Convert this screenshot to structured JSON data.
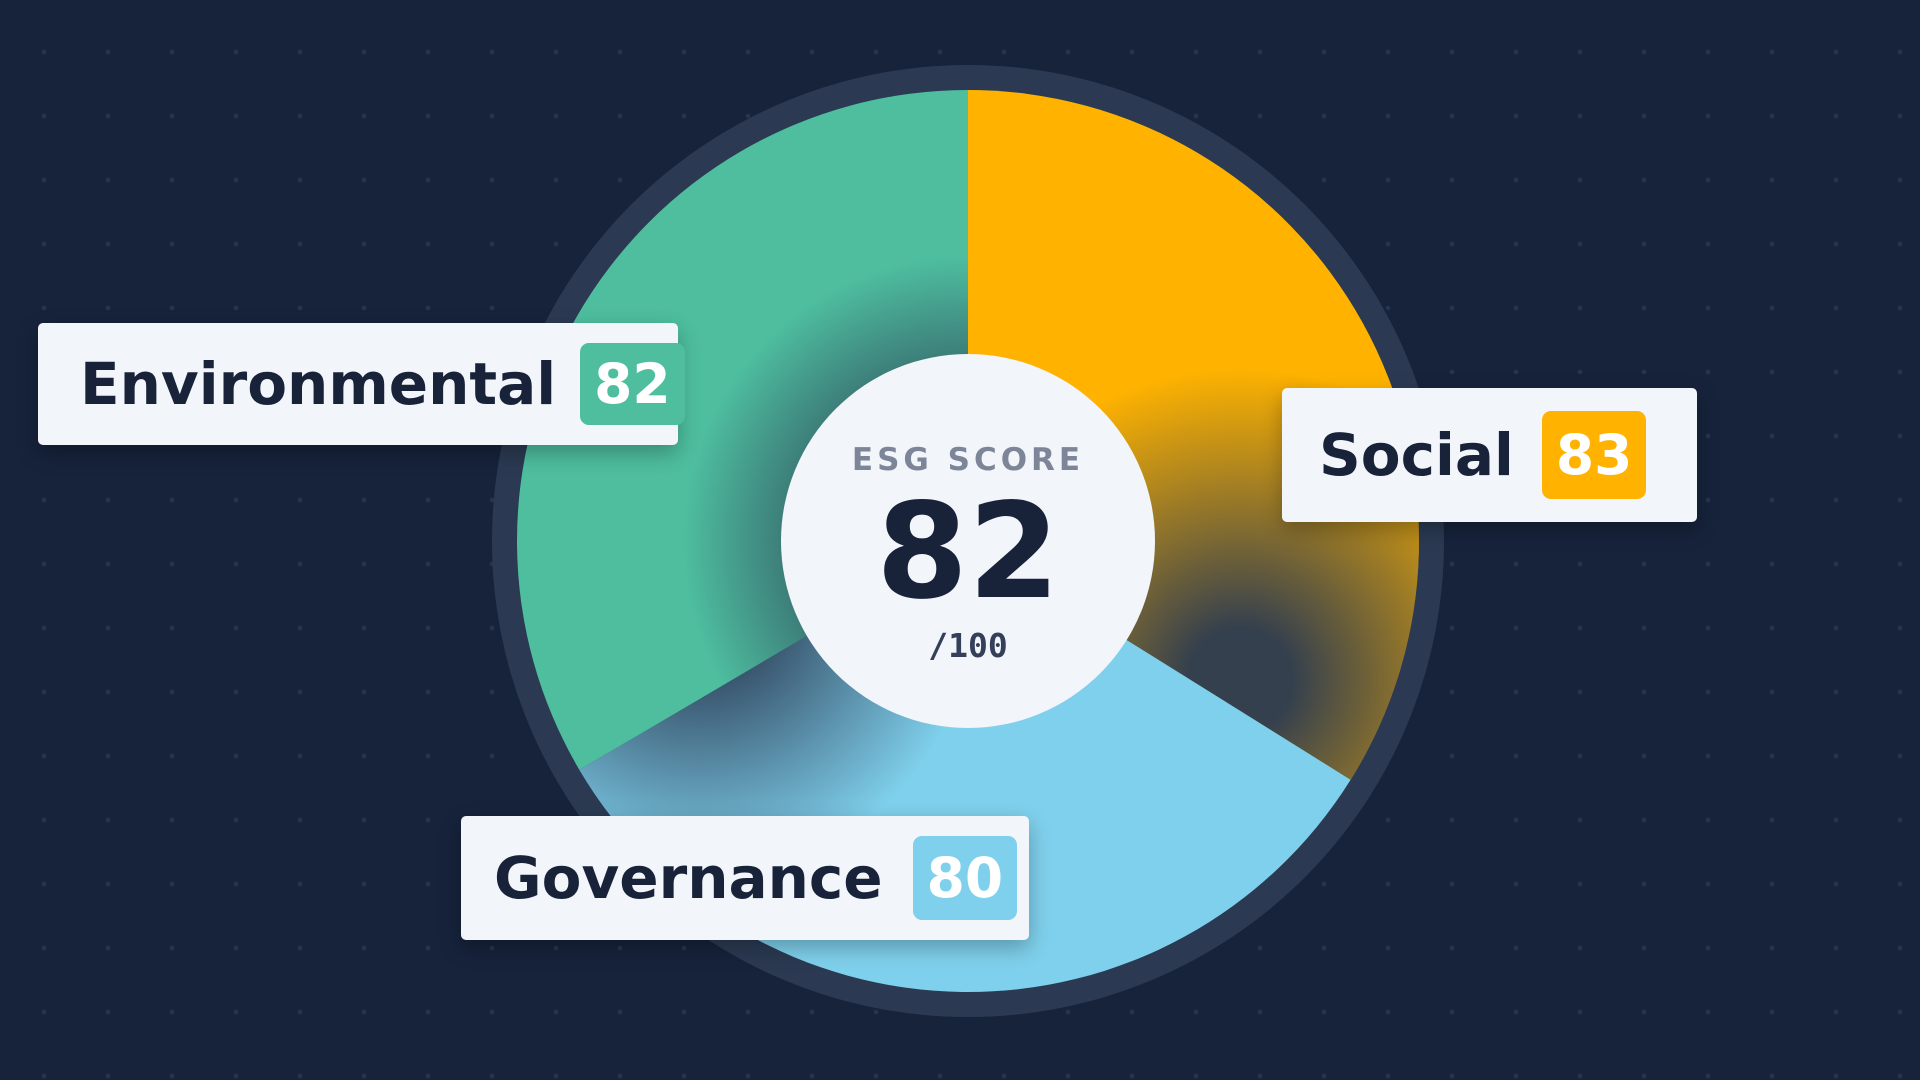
{
  "colors": {
    "background": "#16233b",
    "environmental": "#4ebe9f",
    "social": "#ffb300",
    "governance": "#7fd0ec",
    "track": "#2a3a52",
    "center_fill": "#f2f5fa",
    "text_dark": "#18233a"
  },
  "center": {
    "title": "ESG SCORE",
    "value": "82",
    "sub": "/100"
  },
  "chart_data": {
    "type": "pie",
    "categories": [
      "Social",
      "Governance",
      "Environmental"
    ],
    "values": [
      83,
      80,
      82
    ],
    "center_value": 82,
    "max": 100,
    "grid": false,
    "legend": "callouts"
  },
  "callouts": {
    "environmental": {
      "name": "Environmental",
      "value": "82"
    },
    "social": {
      "name": "Social",
      "value": "83"
    },
    "governance": {
      "name": "Governance",
      "value": "80"
    }
  }
}
